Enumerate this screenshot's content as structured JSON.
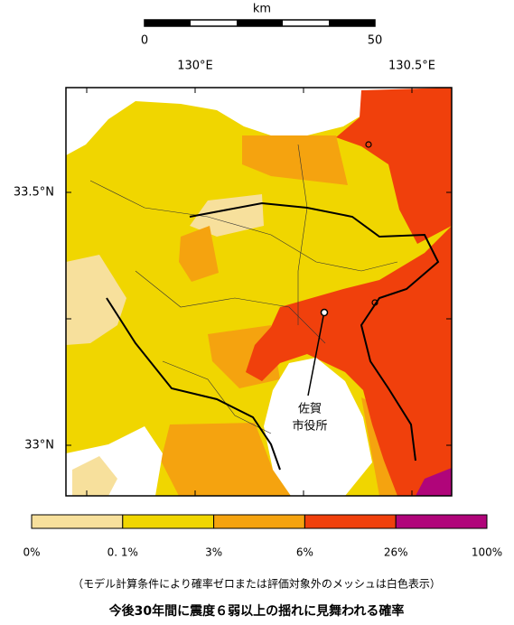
{
  "scale": {
    "unit": "km",
    "start": "0",
    "end": "50"
  },
  "longitudes": [
    "130°E",
    "130.5°E"
  ],
  "latitudes": [
    "33.5°N",
    "33°N"
  ],
  "place": {
    "line1": "佐賀",
    "line2": "市役所"
  },
  "legend": [
    {
      "label": "0%",
      "color": "#f7e09c"
    },
    {
      "label": "0. 1%",
      "color": "#f0d600"
    },
    {
      "label": "3%",
      "color": "#f5a30f"
    },
    {
      "label": "6%",
      "color": "#f0400c"
    },
    {
      "label": "26%",
      "color": "#b0057a"
    },
    {
      "label": "100%"
    }
  ],
  "note": "（モデル計算条件により確率ゼロまたは評価対象外のメッシュは白色表示）",
  "title": "今後30年間に震度６弱以上の揺れに見舞われる確率"
}
